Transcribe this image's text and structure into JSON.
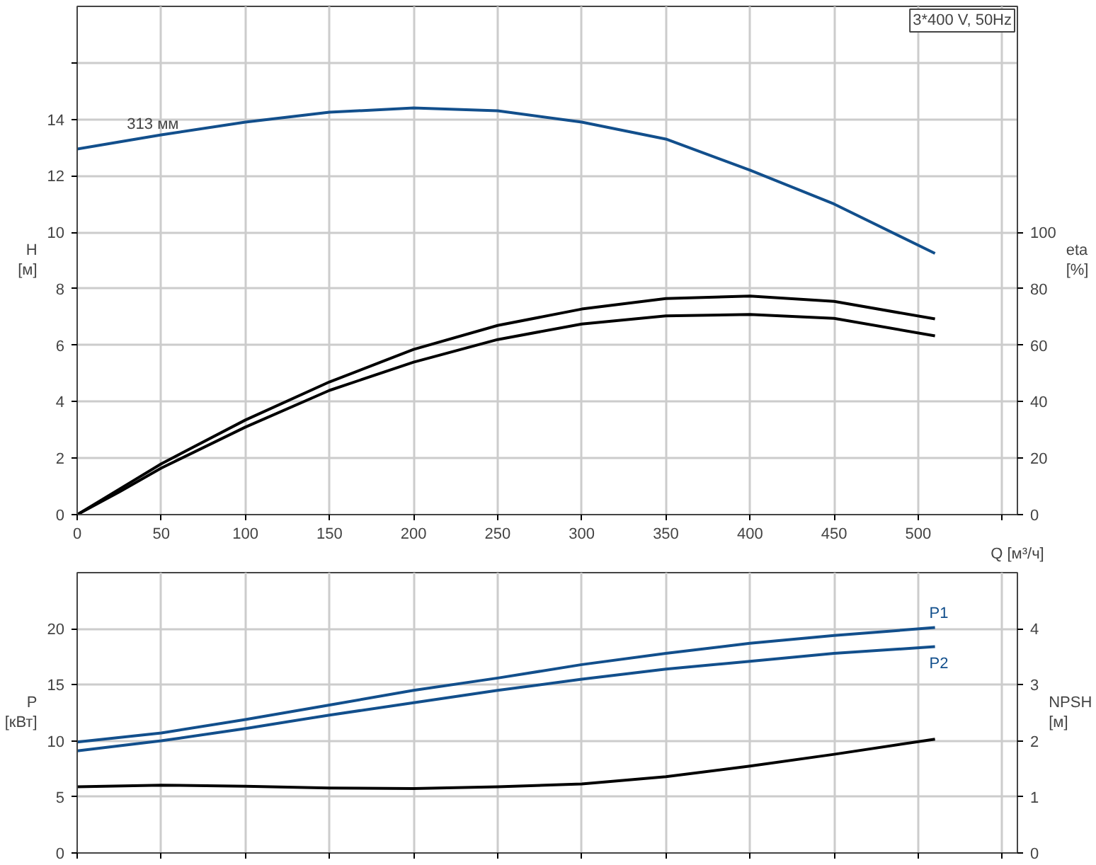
{
  "chart_data": [
    {
      "type": "line",
      "ylabel": "H [м]",
      "y2label": "eta [%]",
      "xlabel": "Q [м³/ч]",
      "annotations": [
        "3*400 V, 50Hz",
        {
          "text": "313 мм",
          "x": 45,
          "y": 13.4
        }
      ],
      "x": [
        0,
        25,
        50,
        100,
        150,
        200,
        250,
        300,
        350,
        400,
        450,
        510
      ],
      "series": [
        {
          "color": "#124f8c",
          "values": [
            12.95,
            13.2,
            13.45,
            13.9,
            14.25,
            14.4,
            14.3,
            13.9,
            13.3,
            12.2,
            11.0,
            9.25
          ]
        },
        {
          "color": "#000000",
          "axis": "y2",
          "values": [
            0,
            9,
            18,
            33.5,
            47,
            58.5,
            67,
            72.8,
            76.5,
            77.4,
            75.5,
            69.3
          ]
        },
        {
          "color": "#000000",
          "axis": "y2",
          "values": [
            0,
            8,
            16.5,
            31,
            44,
            54,
            62,
            67.5,
            70.4,
            70.9,
            69.5,
            63.3
          ]
        }
      ],
      "xlim": [
        0,
        559
      ],
      "xticks": [
        0,
        50,
        100,
        150,
        200,
        250,
        300,
        350,
        400,
        450,
        500,
        {
          "value": 550,
          "label": null
        }
      ],
      "ylim": [
        0,
        18
      ],
      "yticks": [
        0,
        2,
        4,
        6,
        8,
        10,
        12,
        14,
        {
          "value": 16,
          "label": null
        }
      ],
      "y2lim": [
        0,
        180
      ],
      "y2ticks": [
        0,
        20,
        40,
        60,
        80,
        100
      ],
      "grid": true,
      "legend": false,
      "marker": "none",
      "line_style": "solid"
    },
    {
      "type": "line",
      "ylabel": "P [кВт]",
      "y2label": "NPSH [м]",
      "x": [
        0,
        50,
        100,
        150,
        200,
        250,
        300,
        350,
        400,
        450,
        510
      ],
      "series": [
        {
          "name": "P1",
          "color": "#124f8c",
          "values": [
            9.9,
            10.7,
            11.9,
            13.2,
            14.5,
            15.6,
            16.8,
            17.8,
            18.7,
            19.4,
            20.1
          ]
        },
        {
          "name": "P2",
          "color": "#124f8c",
          "values": [
            9.1,
            10.0,
            11.1,
            12.3,
            13.4,
            14.5,
            15.5,
            16.4,
            17.1,
            17.8,
            18.4
          ]
        },
        {
          "color": "#000000",
          "axis": "y2",
          "values": [
            1.18,
            1.21,
            1.19,
            1.16,
            1.15,
            1.18,
            1.23,
            1.36,
            1.55,
            1.76,
            2.03
          ]
        }
      ],
      "xlim": [
        0,
        559
      ],
      "xticks": [
        0,
        50,
        100,
        150,
        200,
        250,
        300,
        350,
        400,
        450,
        500,
        550
      ],
      "ylim": [
        0,
        25
      ],
      "yticks": [
        0,
        5,
        10,
        15,
        20
      ],
      "y2lim": [
        0,
        5
      ],
      "y2ticks": [
        0,
        1,
        2,
        3,
        4
      ],
      "tick_labels": "y",
      "grid": true,
      "legend": false,
      "marker": "none",
      "line_style": "solid"
    }
  ]
}
